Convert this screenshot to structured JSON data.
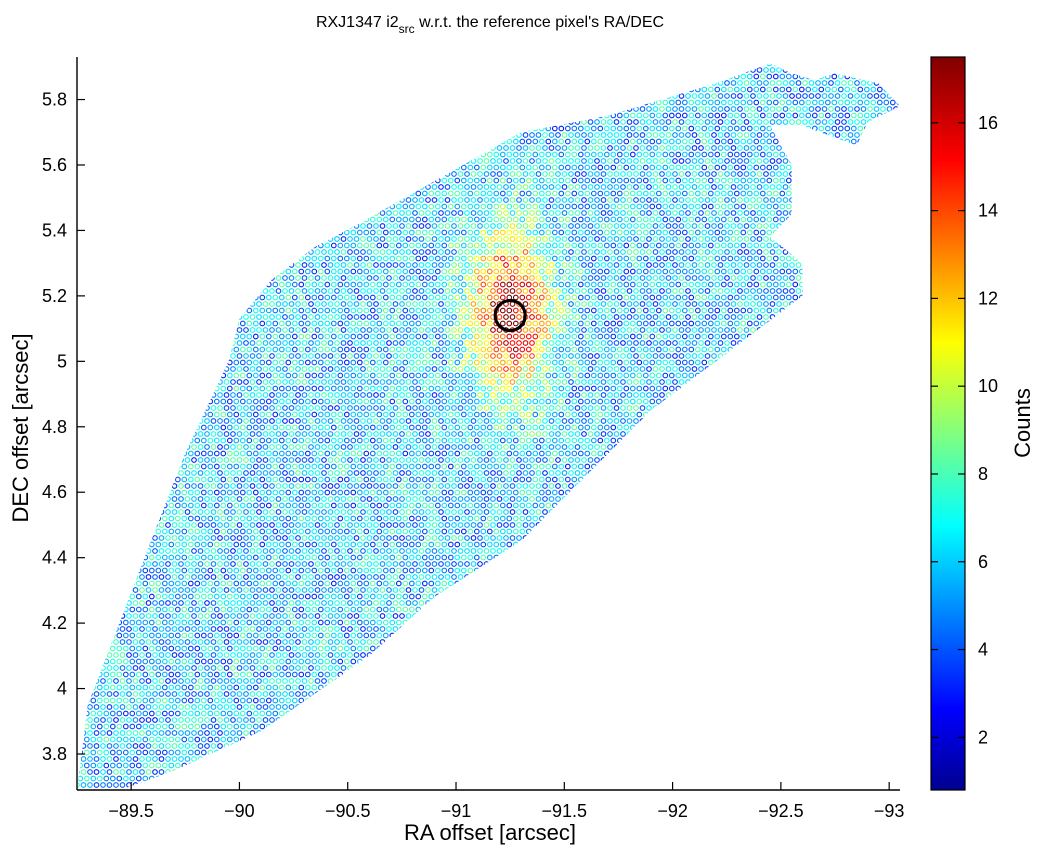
{
  "chart_data": {
    "type": "scatter",
    "title": {
      "prefix": "RXJ1347 i2",
      "subscript": "src",
      "suffix": " w.r.t. the reference pixel's RA/DEC"
    },
    "xlabel": "RA offset [arcsec]",
    "ylabel": "DEC offset [arcsec]",
    "xlim": [
      -89.25,
      -93.05
    ],
    "ylim": [
      3.69,
      5.93
    ],
    "x_ticks": [
      -89.5,
      -90,
      -90.5,
      -91,
      -91.5,
      -92,
      -92.5,
      -93
    ],
    "x_tick_labels": [
      "−89.5",
      "−90",
      "−90.5",
      "−91",
      "−91.5",
      "−92",
      "−92.5",
      "−93"
    ],
    "y_ticks": [
      3.8,
      4,
      4.2,
      4.4,
      4.6,
      4.8,
      5,
      5.2,
      5.4,
      5.6,
      5.8
    ],
    "y_tick_labels": [
      "3.8",
      "4",
      "4.2",
      "4.4",
      "4.6",
      "4.8",
      "5",
      "5.2",
      "5.4",
      "5.6",
      "5.8"
    ],
    "grid": false,
    "colorbar": {
      "label": "Counts",
      "min": 0.8,
      "max": 17.5,
      "ticks": [
        2,
        4,
        6,
        8,
        10,
        12,
        14,
        16
      ],
      "tick_labels": [
        "2",
        "4",
        "6",
        "8",
        "10",
        "12",
        "14",
        "16"
      ],
      "colormap": "jet"
    },
    "region_outline": [
      [
        -89.25,
        3.69
      ],
      [
        -89.3,
        3.95
      ],
      [
        -89.55,
        4.38
      ],
      [
        -89.75,
        4.72
      ],
      [
        -89.95,
        5.0
      ],
      [
        -90.0,
        5.13
      ],
      [
        -90.15,
        5.25
      ],
      [
        -90.35,
        5.35
      ],
      [
        -90.55,
        5.42
      ],
      [
        -90.9,
        5.55
      ],
      [
        -91.3,
        5.7
      ],
      [
        -91.7,
        5.75
      ],
      [
        -91.95,
        5.8
      ],
      [
        -92.2,
        5.85
      ],
      [
        -92.45,
        5.91
      ],
      [
        -92.55,
        5.88
      ],
      [
        -92.65,
        5.86
      ],
      [
        -92.75,
        5.88
      ],
      [
        -92.95,
        5.85
      ],
      [
        -93.05,
        5.78
      ],
      [
        -92.9,
        5.73
      ],
      [
        -92.85,
        5.66
      ],
      [
        -92.6,
        5.72
      ],
      [
        -92.45,
        5.72
      ],
      [
        -92.55,
        5.6
      ],
      [
        -92.55,
        5.45
      ],
      [
        -92.45,
        5.38
      ],
      [
        -92.6,
        5.3
      ],
      [
        -92.6,
        5.2
      ],
      [
        -92.3,
        5.05
      ],
      [
        -91.9,
        4.85
      ],
      [
        -91.6,
        4.65
      ],
      [
        -91.3,
        4.45
      ],
      [
        -90.9,
        4.28
      ],
      [
        -90.6,
        4.1
      ],
      [
        -90.1,
        3.87
      ],
      [
        -89.7,
        3.75
      ],
      [
        -89.45,
        3.69
      ]
    ],
    "hotspot": {
      "x": -91.25,
      "y": 5.15,
      "peak_counts": 17
    },
    "background_counts": 6,
    "marker_circle": {
      "x": -91.25,
      "y": 5.14
    }
  }
}
